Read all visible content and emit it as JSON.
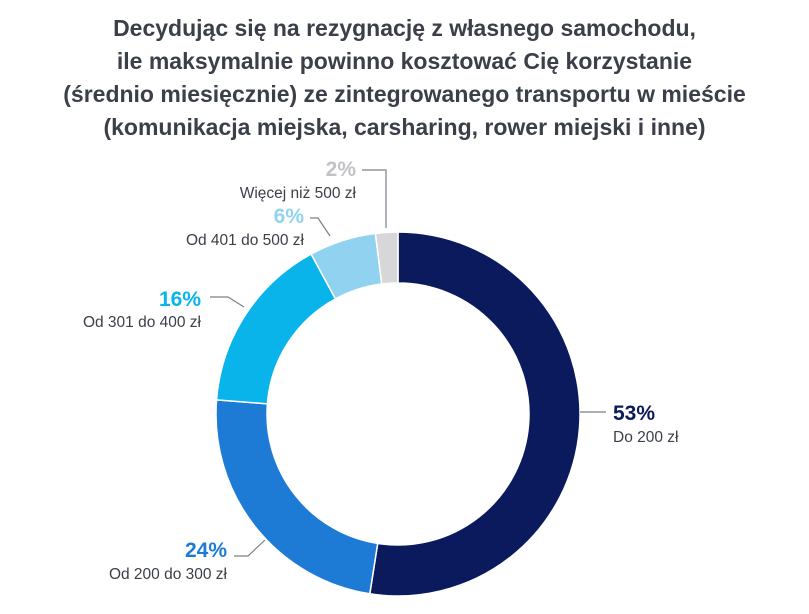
{
  "title_lines": [
    "Decydując się na rezygnację z własnego samochodu,",
    "ile maksymalnie powinno kosztować Cię korzystanie",
    "(średnio miesięcznie) ze zintegrowanego transportu w mieście",
    "(komunikacja miejska, carsharing, rower miejski i inne)"
  ],
  "chart_data": {
    "type": "pie",
    "donut": true,
    "title": "Decydując się na rezygnację z własnego samochodu, ile maksymalnie powinno kosztować Cię korzystanie (średnio miesięcznie) ze zintegrowanego transportu w mieście (komunikacja miejska, carsharing, rower miejski i inne)",
    "legend": "none",
    "slices": [
      {
        "label": "Do 200 zł",
        "value": 53,
        "value_label": "53%",
        "color": "#0b1a5c"
      },
      {
        "label": "Od 200 do 300 zł",
        "value": 24,
        "value_label": "24%",
        "color": "#1d7bd6"
      },
      {
        "label": "Od 301 do 400 zł",
        "value": 16,
        "value_label": "16%",
        "color": "#08b4ea"
      },
      {
        "label": "Od 401 do 500 zł",
        "value": 6,
        "value_label": "6%",
        "color": "#92d2f1"
      },
      {
        "label": "Więcej niż 500 zł",
        "value": 2,
        "value_label": "2%",
        "color": "#d7d7d9"
      }
    ]
  }
}
